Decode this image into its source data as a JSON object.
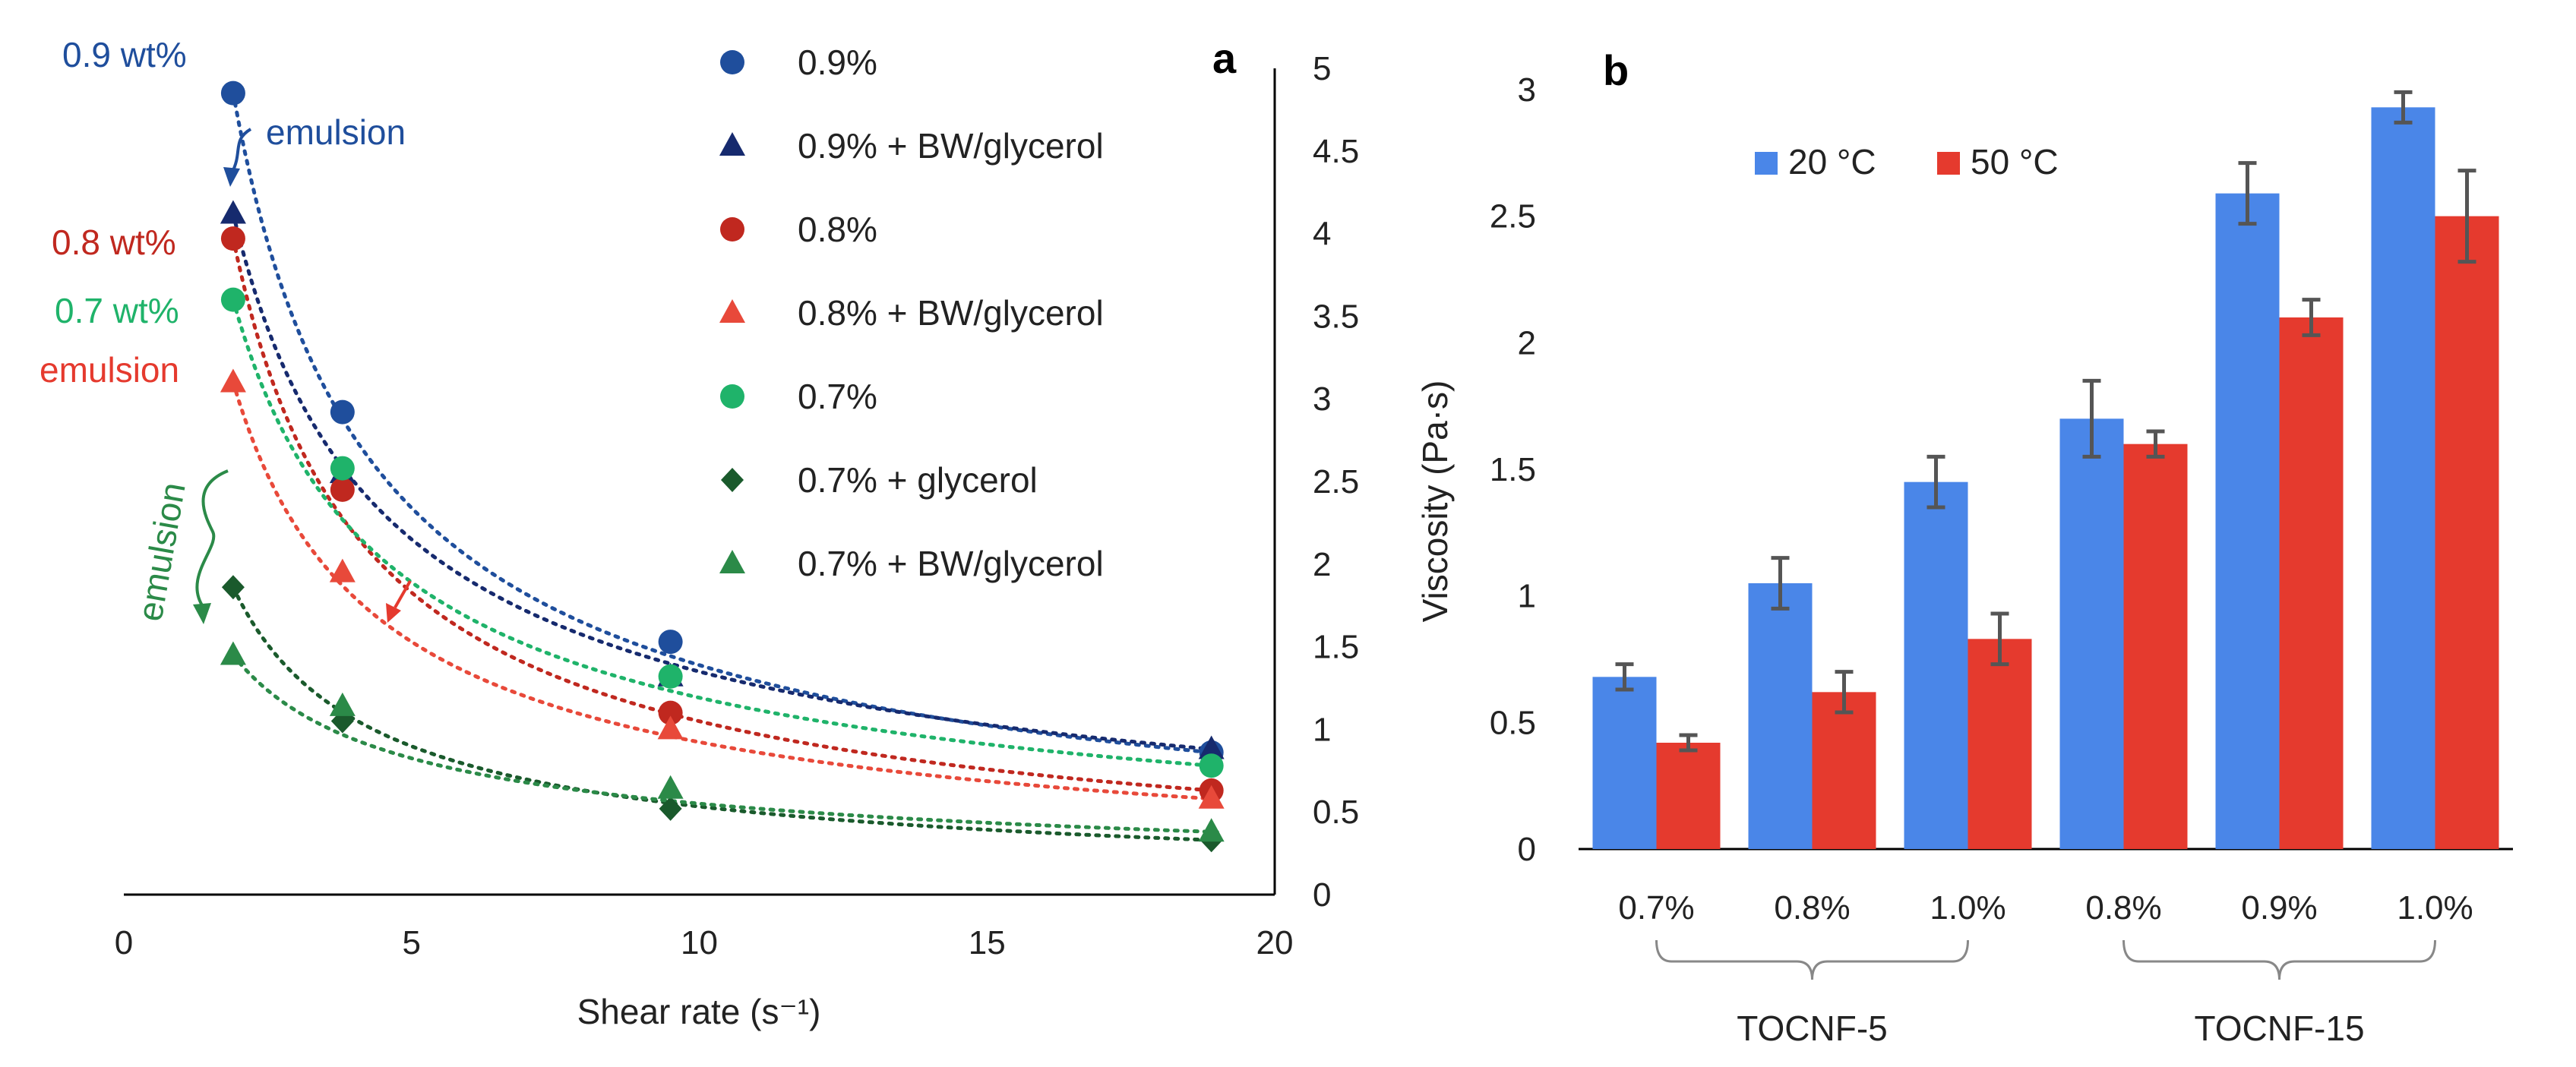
{
  "colors": {
    "c09": "#1f4e9c",
    "c09bw": "#162a6e",
    "c08": "#c0281f",
    "c08bw": "#e8493a",
    "c07": "#1fb36a",
    "c07gly": "#1a5a2c",
    "c07bw": "#2b8a48",
    "blue": "#4a86e8",
    "red": "#e53a2e",
    "axis": "#000000",
    "text": "#222222"
  },
  "chart_data": [
    {
      "type": "scatter",
      "panel": "a",
      "xlabel": "Shear rate (s⁻¹)",
      "ylabel": "",
      "xlim": [
        0,
        20
      ],
      "ylim": [
        0,
        5
      ],
      "xticks": [
        "0",
        "5",
        "10",
        "15",
        "20"
      ],
      "yticks": [
        "0",
        "0.5",
        "1",
        "1.5",
        "2",
        "2.5",
        "3",
        "3.5",
        "4",
        "4.5",
        "5"
      ],
      "legend_position": "top-center",
      "series": [
        {
          "key": "s09",
          "name": "0.9%",
          "marker": "circle",
          "color": "#1f4e9c",
          "x": [
            1.9,
            3.8,
            9.5,
            18.9
          ],
          "y": [
            4.85,
            2.92,
            1.53,
            0.86
          ]
        },
        {
          "key": "s09bw",
          "name": "0.9% + BW/glycerol",
          "marker": "triangle",
          "color": "#162a6e",
          "x": [
            1.9,
            3.8,
            9.5,
            18.9
          ],
          "y": [
            4.12,
            2.55,
            1.32,
            0.88
          ]
        },
        {
          "key": "s08",
          "name": "0.8%",
          "marker": "circle",
          "color": "#c0281f",
          "x": [
            1.9,
            3.8,
            9.5,
            18.9
          ],
          "y": [
            3.97,
            2.45,
            1.1,
            0.63
          ]
        },
        {
          "key": "s08bw",
          "name": "0.8% + BW/glycerol",
          "marker": "triangle",
          "color": "#e8493a",
          "x": [
            1.9,
            3.8,
            9.5,
            18.9
          ],
          "y": [
            3.1,
            1.95,
            1.0,
            0.58
          ]
        },
        {
          "key": "s07",
          "name": "0.7%",
          "marker": "circle",
          "color": "#1fb36a",
          "x": [
            1.9,
            3.8,
            9.5,
            18.9
          ],
          "y": [
            3.6,
            2.58,
            1.32,
            0.78
          ]
        },
        {
          "key": "s07gly",
          "name": "0.7% + glycerol",
          "marker": "diamond",
          "color": "#1a5a2c",
          "x": [
            1.9,
            3.8,
            9.5,
            18.9
          ],
          "y": [
            1.86,
            1.05,
            0.52,
            0.33
          ]
        },
        {
          "key": "s07bw",
          "name": "0.7% + BW/glycerol",
          "marker": "triangle",
          "color": "#2b8a48",
          "x": [
            1.9,
            3.8,
            9.5,
            18.9
          ],
          "y": [
            1.45,
            1.14,
            0.64,
            0.38
          ]
        }
      ],
      "annotations": {
        "label_09": "0.9 wt%",
        "label_08": "0.8 wt%",
        "label_07": "0.7 wt%",
        "emulsion_blue": "emulsion",
        "emulsion_red": "emulsion",
        "emulsion_green": "emulsion"
      }
    },
    {
      "type": "bar",
      "panel": "b",
      "ylabel": "Viscosity (Pa·s)",
      "ylim": [
        0,
        3
      ],
      "yticks": [
        "0",
        "0.5",
        "1",
        "1.5",
        "2",
        "2.5",
        "3"
      ],
      "categories": [
        "0.7%",
        "0.8%",
        "1.0%",
        "0.8%",
        "0.9%",
        "1.0%"
      ],
      "groups": [
        {
          "label": "TOCNF-5",
          "from": 0,
          "to": 2
        },
        {
          "label": "TOCNF-15",
          "from": 3,
          "to": 5
        }
      ],
      "legend_position": "top-left",
      "series": [
        {
          "name": "20 °C",
          "color": "#4a86e8",
          "values": [
            0.68,
            1.05,
            1.45,
            1.7,
            2.59,
            2.93
          ],
          "errors": [
            0.05,
            0.1,
            0.1,
            0.15,
            0.12,
            0.06
          ]
        },
        {
          "name": "50 °C",
          "color": "#e53a2e",
          "values": [
            0.42,
            0.62,
            0.83,
            1.6,
            2.1,
            2.5
          ],
          "errors": [
            0.03,
            0.08,
            0.1,
            0.05,
            0.07,
            0.18
          ]
        }
      ]
    }
  ]
}
